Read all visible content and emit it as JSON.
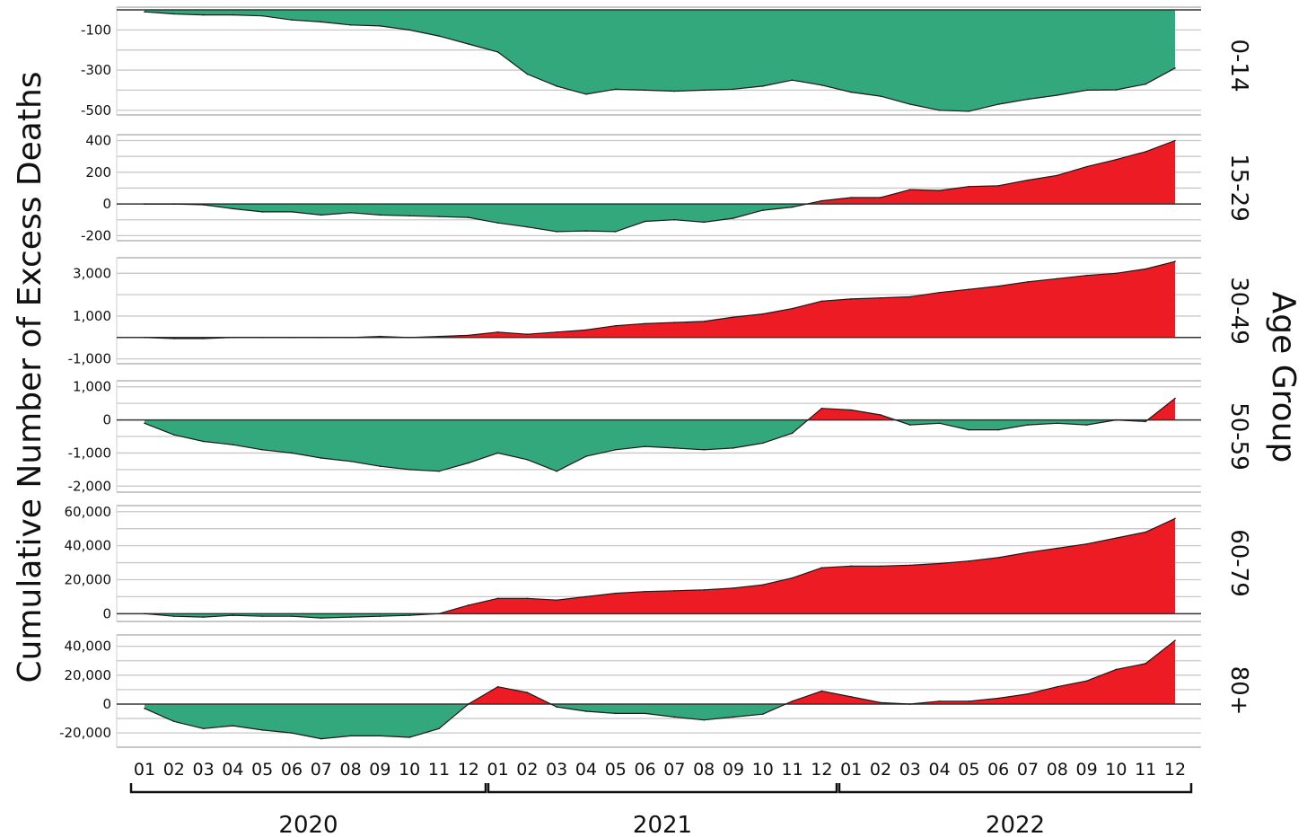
{
  "chart_data": {
    "type": "area",
    "ylabel": "Cumulative Number of Excess Deaths",
    "right_title": "Age Group",
    "x_months": [
      "01",
      "02",
      "03",
      "04",
      "05",
      "06",
      "07",
      "08",
      "09",
      "10",
      "11",
      "12",
      "01",
      "02",
      "03",
      "04",
      "05",
      "06",
      "07",
      "08",
      "09",
      "10",
      "11",
      "12",
      "01",
      "02",
      "03",
      "04",
      "05",
      "06",
      "07",
      "08",
      "09",
      "10",
      "11",
      "12"
    ],
    "years": [
      "2020",
      "2021",
      "2022"
    ],
    "colors": {
      "positive": "#ed1c24",
      "negative": "#33a87c",
      "grid": "#c8c8c8",
      "zero": "#333333"
    },
    "panels": [
      {
        "name": "0-14",
        "ylim": [
          -510,
          0
        ],
        "yticks": [
          -100,
          -300,
          -500
        ],
        "ytick_labels": [
          "-100",
          "-300",
          "-500"
        ],
        "grid": [
          -500,
          -400,
          -300,
          -200,
          -100
        ],
        "values": [
          -10,
          -20,
          -25,
          -25,
          -30,
          -50,
          -60,
          -75,
          -80,
          -100,
          -130,
          -170,
          -210,
          -320,
          -380,
          -420,
          -395,
          -400,
          -405,
          -400,
          -395,
          -380,
          -350,
          -375,
          -410,
          -430,
          -470,
          -500,
          -505,
          -470,
          -445,
          -425,
          -400,
          -398,
          -370,
          -290
        ]
      },
      {
        "name": "15-29",
        "ylim": [
          -215,
          420
        ],
        "yticks": [
          400,
          200,
          0,
          -200
        ],
        "ytick_labels": [
          "400",
          "200",
          "0",
          "-200"
        ],
        "grid": [
          -200,
          -100,
          0,
          100,
          200,
          300,
          400
        ],
        "values": [
          0,
          0,
          -5,
          -30,
          -50,
          -50,
          -70,
          -55,
          -70,
          -75,
          -80,
          -85,
          -120,
          -145,
          -175,
          -170,
          -175,
          -110,
          -100,
          -115,
          -90,
          -40,
          -20,
          20,
          40,
          40,
          90,
          85,
          110,
          115,
          150,
          180,
          235,
          280,
          330,
          400
        ]
      },
      {
        "name": "30-49",
        "ylim": [
          -1100,
          3600
        ],
        "yticks": [
          3000,
          1000,
          -1000
        ],
        "ytick_labels": [
          "3,000",
          "1,000",
          "-1,000"
        ],
        "grid": [
          -1000,
          0,
          1000,
          2000,
          3000
        ],
        "values": [
          0,
          -50,
          -50,
          0,
          0,
          0,
          0,
          0,
          50,
          0,
          50,
          100,
          250,
          150,
          250,
          350,
          550,
          650,
          700,
          750,
          950,
          1100,
          1350,
          1700,
          1800,
          1850,
          1900,
          2100,
          2250,
          2400,
          2600,
          2750,
          2900,
          3000,
          3200,
          3550
        ]
      },
      {
        "name": "50-59",
        "ylim": [
          -2100,
          1100
        ],
        "yticks": [
          1000,
          0,
          -1000,
          -2000
        ],
        "ytick_labels": [
          "1,000",
          "0",
          "-1,000",
          "-2,000"
        ],
        "grid": [
          -2000,
          -1500,
          -1000,
          -500,
          0,
          500,
          1000
        ],
        "values": [
          -100,
          -450,
          -650,
          -750,
          -900,
          -1000,
          -1150,
          -1250,
          -1400,
          -1500,
          -1550,
          -1300,
          -1000,
          -1200,
          -1550,
          -1100,
          -900,
          -800,
          -850,
          -900,
          -850,
          -700,
          -400,
          350,
          300,
          150,
          -150,
          -100,
          -300,
          -300,
          -150,
          -100,
          -150,
          0,
          -50,
          650
        ]
      },
      {
        "name": "60-79",
        "ylim": [
          -3000,
          62000
        ],
        "yticks": [
          60000,
          40000,
          20000,
          0
        ],
        "ytick_labels": [
          "60,000",
          "40,000",
          "20,000",
          "0"
        ],
        "grid": [
          0,
          10000,
          20000,
          30000,
          40000,
          50000,
          60000
        ],
        "values": [
          0,
          -1500,
          -2000,
          -1000,
          -1500,
          -1500,
          -2500,
          -2000,
          -1500,
          -1000,
          0,
          5000,
          9000,
          9000,
          8000,
          10000,
          12000,
          13000,
          13500,
          14000,
          15000,
          17000,
          21000,
          27000,
          28000,
          28000,
          28500,
          29500,
          31000,
          33000,
          36000,
          38500,
          41000,
          44500,
          48000,
          56000
        ]
      },
      {
        "name": "80+",
        "ylim": [
          -28000,
          46000
        ],
        "yticks": [
          40000,
          20000,
          0,
          -20000
        ],
        "ytick_labels": [
          "40,000",
          "20,000",
          "0",
          "-20,000"
        ],
        "grid": [
          -20000,
          -10000,
          0,
          10000,
          20000,
          30000,
          40000
        ],
        "values": [
          -3000,
          -12000,
          -17000,
          -15000,
          -18000,
          -20000,
          -24000,
          -22000,
          -22000,
          -23000,
          -17000,
          0,
          12000,
          8000,
          -2000,
          -5000,
          -6500,
          -6500,
          -9000,
          -11000,
          -9000,
          -7000,
          2000,
          9000,
          5000,
          1000,
          0,
          2000,
          2000,
          4000,
          7000,
          12000,
          16000,
          24000,
          28000,
          44000
        ]
      }
    ]
  }
}
